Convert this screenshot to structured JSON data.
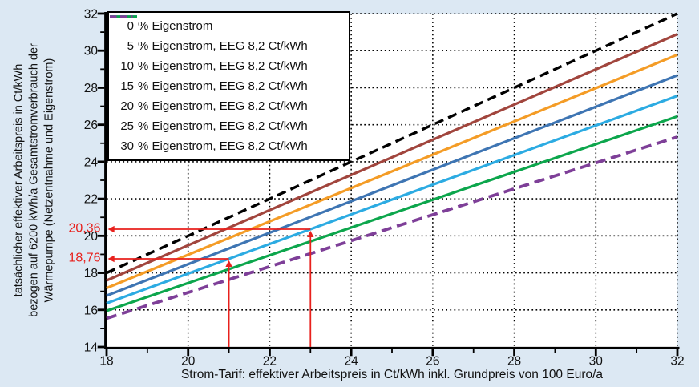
{
  "chart_data": {
    "type": "line",
    "title": "",
    "xlabel": "Strom-Tarif: effektiver Arbeitspreis in Ct/kWh inkl. Grundpreis von 100 Euro/a",
    "ylabel_lines": [
      "tatsächlicher effektiver Arbeitspreis in Ct/kWh",
      "bezogen auf 6200 kWh/a Gesamtstromverbrauch der",
      "Wärmepumpe (Netzentnahme und Eigenstrom)"
    ],
    "xlim": [
      18,
      32
    ],
    "ylim": [
      14,
      32
    ],
    "x_ticks": [
      18,
      20,
      22,
      24,
      26,
      28,
      30,
      32
    ],
    "y_ticks": [
      14,
      16,
      18,
      20,
      22,
      24,
      26,
      28,
      30,
      32
    ],
    "minor_tick_step": 1,
    "grid": "dotted",
    "legend_position": "top-left",
    "colors": {
      "page_background": "#dce8f3",
      "plot_background": "#ffffff",
      "grid": "#000000",
      "axis": "#000000",
      "text": "#111111"
    },
    "series": [
      {
        "name": "0 % Eigenstrom",
        "color": "#000000",
        "style": "dashed",
        "dash": "11.5 6.5",
        "legend_dash": "6.5 4.5",
        "width": 3.4,
        "x": [
          18,
          32
        ],
        "y": [
          18.0,
          32.0
        ]
      },
      {
        "name": "5 % Eigenstrom, EEG 8,2 Ct/kWh",
        "color": "#a1453d",
        "style": "solid",
        "width": 3.2,
        "x": [
          18,
          32
        ],
        "y": [
          17.59,
          30.89
        ]
      },
      {
        "name": "10 % Eigenstrom, EEG 8,2 Ct/kWh",
        "color": "#f49c26",
        "style": "solid",
        "width": 3.2,
        "x": [
          18,
          32
        ],
        "y": [
          17.18,
          29.78
        ]
      },
      {
        "name": "15 % Eigenstrom, EEG 8,2 Ct/kWh",
        "color": "#3e75b3",
        "style": "solid",
        "width": 3.2,
        "x": [
          18,
          32
        ],
        "y": [
          16.77,
          28.67
        ]
      },
      {
        "name": "20 % Eigenstrom, EEG 8,2 Ct/kWh",
        "color": "#2cabe2",
        "style": "solid",
        "width": 3.2,
        "x": [
          18,
          32
        ],
        "y": [
          16.36,
          27.56
        ]
      },
      {
        "name": "25 % Eigenstrom, EEG 8,2 Ct/kWh",
        "color": "#0ca64c",
        "style": "solid",
        "width": 3.2,
        "x": [
          18,
          32
        ],
        "y": [
          15.95,
          26.45
        ]
      },
      {
        "name": "30 % Eigenstrom, EEG 8,2 Ct/kWh",
        "color": "#7e3f98",
        "style": "dashed",
        "dash": "13 7",
        "legend_dash": "8.5 4.5 8.5 4.5 2.5 99",
        "width": 3.8,
        "x": [
          18,
          32
        ],
        "y": [
          15.54,
          25.34
        ]
      }
    ],
    "annotations": {
      "color": "#e8211d",
      "points": [
        {
          "x": 21,
          "y": 18.76,
          "label": "18,76",
          "series": "20 % Eigenstrom, EEG 8,2 Ct/kWh"
        },
        {
          "x": 23,
          "y": 20.36,
          "label": "20,36",
          "series": "20 % Eigenstrom, EEG 8,2 Ct/kWh"
        }
      ]
    }
  }
}
